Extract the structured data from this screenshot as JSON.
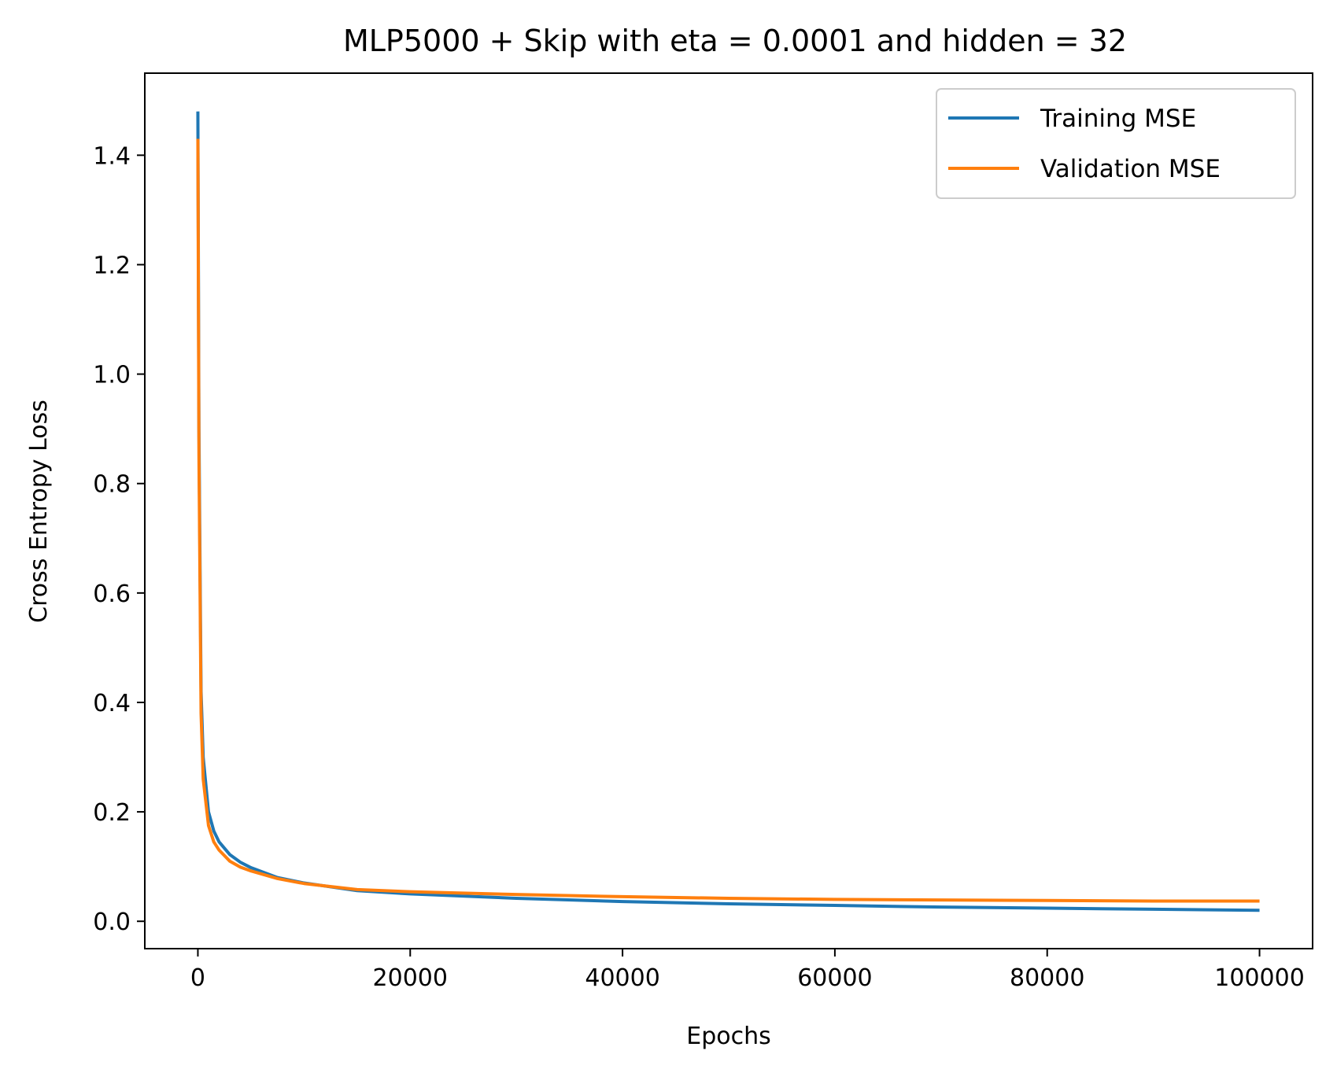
{
  "chart_data": {
    "type": "line",
    "title": "MLP5000 + Skip with eta = 0.0001 and hidden = 32",
    "xlabel": "Epochs",
    "ylabel": "Cross Entropy Loss",
    "xlim": [
      -5000,
      105000
    ],
    "ylim": [
      -0.05,
      1.55
    ],
    "xticks": [
      0,
      20000,
      40000,
      60000,
      80000,
      100000
    ],
    "xtick_labels": [
      "0",
      "20000",
      "40000",
      "60000",
      "80000",
      "100000"
    ],
    "yticks": [
      0.0,
      0.2,
      0.4,
      0.6,
      0.8,
      1.0,
      1.2,
      1.4
    ],
    "ytick_labels": [
      "0.0",
      "0.2",
      "0.4",
      "0.6",
      "0.8",
      "1.0",
      "1.2",
      "1.4"
    ],
    "grid": false,
    "legend_position": "top-right",
    "series": [
      {
        "name": "Training MSE",
        "color": "#1f77b4",
        "x": [
          0,
          100,
          300,
          500,
          1000,
          1500,
          2000,
          3000,
          4000,
          5000,
          7500,
          10000,
          15000,
          20000,
          30000,
          40000,
          50000,
          60000,
          70000,
          80000,
          90000,
          100000
        ],
        "y": [
          1.48,
          0.9,
          0.42,
          0.3,
          0.2,
          0.165,
          0.145,
          0.122,
          0.108,
          0.098,
          0.08,
          0.07,
          0.056,
          0.05,
          0.042,
          0.036,
          0.032,
          0.029,
          0.026,
          0.024,
          0.022,
          0.02
        ]
      },
      {
        "name": "Validation MSE",
        "color": "#ff7f0e",
        "x": [
          0,
          100,
          300,
          500,
          1000,
          1500,
          2000,
          3000,
          4000,
          5000,
          7500,
          10000,
          15000,
          20000,
          30000,
          40000,
          50000,
          60000,
          70000,
          80000,
          90000,
          100000
        ],
        "y": [
          1.43,
          0.85,
          0.38,
          0.26,
          0.175,
          0.145,
          0.13,
          0.11,
          0.099,
          0.092,
          0.078,
          0.069,
          0.058,
          0.054,
          0.049,
          0.045,
          0.042,
          0.04,
          0.039,
          0.038,
          0.037,
          0.037
        ]
      }
    ]
  }
}
